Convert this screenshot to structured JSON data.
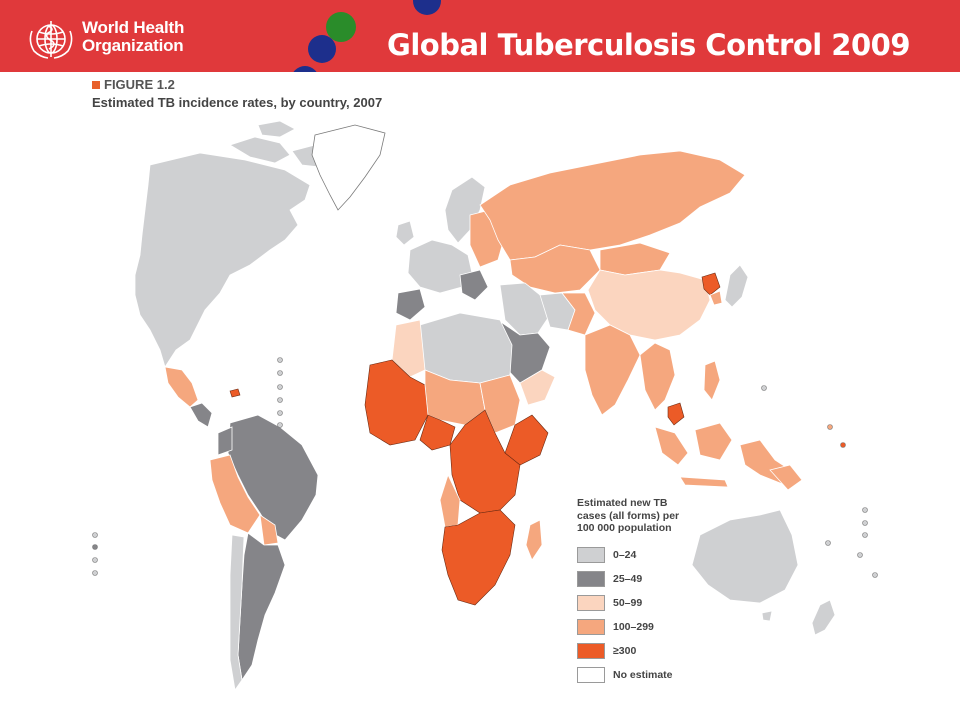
{
  "header": {
    "org_line1": "World Health",
    "org_line2": "Organization",
    "title": "Global Tuberculosis Control 2009",
    "background_color": "#e0393b"
  },
  "figure": {
    "label": "FIGURE 1.2",
    "caption": "Estimated TB incidence rates, by country, 2007"
  },
  "legend": {
    "title": "Estimated new TB cases (all forms) per 100 000 population",
    "categories": [
      {
        "label": "0–24",
        "color": "#cfd0d2"
      },
      {
        "label": "25–49",
        "color": "#858589"
      },
      {
        "label": "50–99",
        "color": "#fbd5bf"
      },
      {
        "label": "100–299",
        "color": "#f5a77e"
      },
      {
        "label": "≥300",
        "color": "#ec5b27"
      },
      {
        "label": "No estimate",
        "color": "#ffffff"
      }
    ]
  }
}
